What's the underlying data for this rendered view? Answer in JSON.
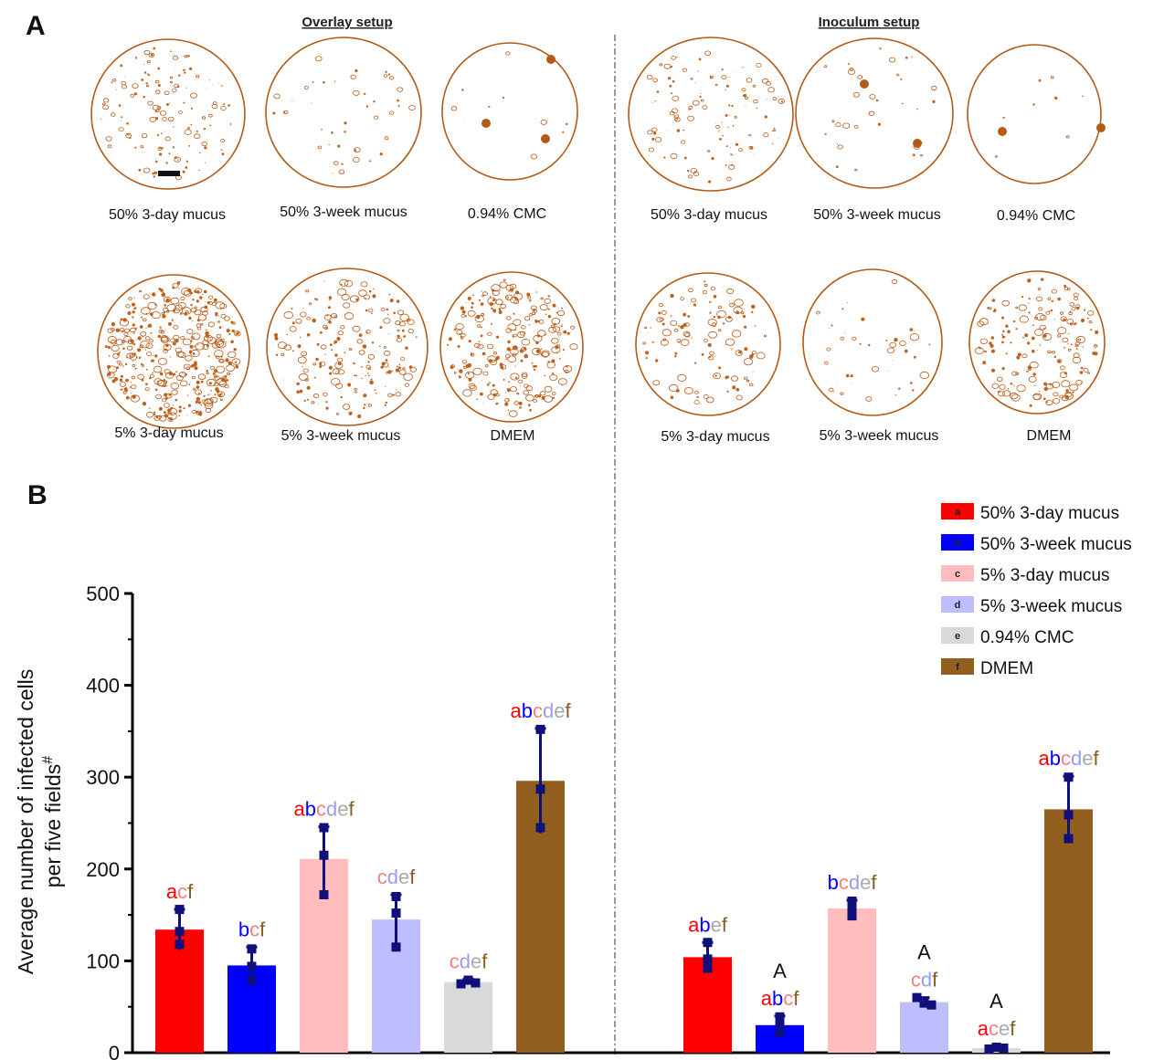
{
  "panel_a": {
    "letter": "A",
    "overlay_title": "Overlay setup",
    "inoculum_title": "Inoculum setup",
    "overlay_row1": [
      "50% 3-day mucus",
      "50% 3-week mucus",
      "0.94% CMC"
    ],
    "overlay_row2": [
      "5% 3-day mucus",
      "5%  3-week mucus",
      "DMEM"
    ],
    "inoculum_row1": [
      "50% 3-day mucus",
      "50% 3-week mucus",
      "0.94% CMC"
    ],
    "inoculum_row2": [
      "5% 3-day mucus",
      "5%  3-week mucus",
      "DMEM"
    ]
  },
  "panel_b": {
    "letter": "B"
  },
  "chart_data": {
    "type": "bar",
    "ylabel_line1": "Average number of infected cells",
    "ylabel_line2": "per five fields",
    "ylabel_superscript": "#",
    "ylim": [
      0,
      500
    ],
    "yticks": [
      "0",
      "100",
      "200",
      "300",
      "400",
      "500"
    ],
    "groups": [
      {
        "name": "",
        "bars": [
          {
            "series": "a",
            "value": 134,
            "err": 22,
            "points": [
              156,
              132,
              118
            ],
            "letters": "acf"
          },
          {
            "series": "b",
            "value": 95,
            "err": 20,
            "points": [
              113,
              94,
              79
            ],
            "letters": "bcf"
          },
          {
            "series": "c",
            "value": 211,
            "err": 35,
            "points": [
              245,
              215,
              172
            ],
            "letters": "abcdef"
          },
          {
            "series": "d",
            "value": 145,
            "err": 27,
            "points": [
              170,
              152,
              115
            ],
            "letters": "cdef"
          },
          {
            "series": "e",
            "value": 77,
            "err": 3,
            "points": [
              75,
              79,
              76
            ],
            "letters": "cdef"
          },
          {
            "series": "f",
            "value": 296,
            "err": 57,
            "points": [
              352,
              287,
              245
            ],
            "letters": "abcdef"
          }
        ]
      },
      {
        "name": "",
        "bars": [
          {
            "series": "a",
            "value": 104,
            "err": 16,
            "points": [
              120,
              102,
              92
            ],
            "letters": "abef"
          },
          {
            "series": "b",
            "value": 30,
            "err": 10,
            "points": [
              39,
              33,
              22
            ],
            "letters": "abcf",
            "mark": "A"
          },
          {
            "series": "c",
            "value": 157,
            "err": 9,
            "points": [
              165,
              157,
              149
            ],
            "letters": "bcdef"
          },
          {
            "series": "d",
            "value": 55,
            "err": 5,
            "points": [
              60,
              54,
              52
            ],
            "letters": "cdf",
            "mark": "A"
          },
          {
            "series": "e",
            "value": 5,
            "err": 2,
            "points": [
              4,
              6,
              5
            ],
            "letters": "acef",
            "mark": "A"
          },
          {
            "series": "f",
            "value": 265,
            "err": 36,
            "points": [
              300,
              259,
              233
            ],
            "letters": "abcdef"
          }
        ]
      }
    ],
    "series": [
      {
        "key": "a",
        "name": "50% 3-day mucus",
        "color": "#ff0000"
      },
      {
        "key": "b",
        "name": "50% 3-week mucus",
        "color": "#0000ff"
      },
      {
        "key": "c",
        "name": "5% 3-day mucus",
        "color": "#ffbdbd"
      },
      {
        "key": "d",
        "name": "5% 3-week mucus",
        "color": "#bdbdff"
      },
      {
        "key": "e",
        "name": "0.94% CMC",
        "color": "#d9d9d9"
      },
      {
        "key": "f",
        "name": "DMEM",
        "color": "#935f1e"
      }
    ],
    "letter_colors": {
      "a": "#ff0000",
      "b": "#0000ff",
      "c": "#f08080",
      "d": "#9b9bf0",
      "e": "#aaaaaa",
      "f": "#8b5a1e"
    },
    "error_color": "#10107a",
    "legend_position": "top-right",
    "grid": false
  }
}
